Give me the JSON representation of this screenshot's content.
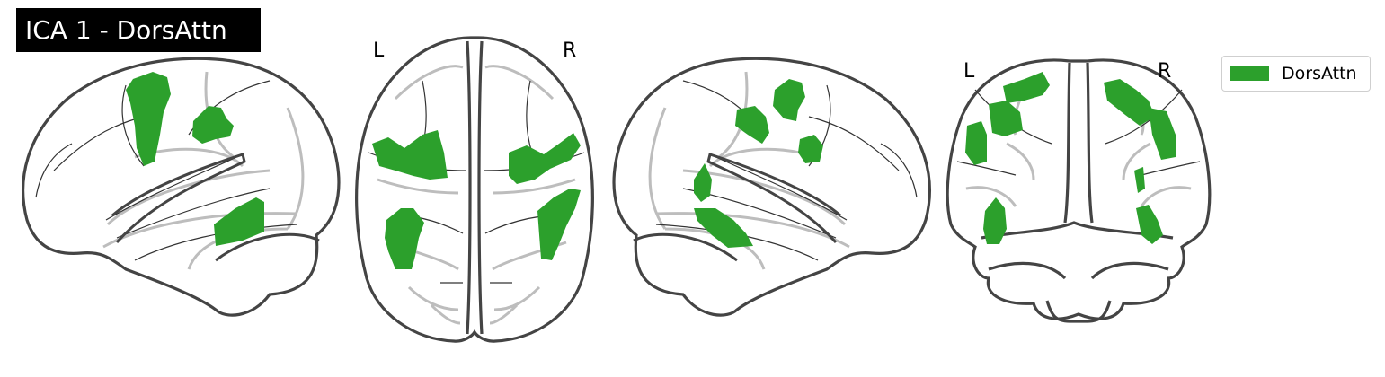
{
  "title": "ICA 1 - DorsAttn",
  "network": "DorsAttn",
  "colors": {
    "network_fill": "#2ca02c",
    "outline": "#444444",
    "gyri": "#bdbdbd",
    "sulci": "#333333",
    "title_background": "#000000",
    "title_text": "#ffffff"
  },
  "views": [
    {
      "name": "left-sagittal"
    },
    {
      "name": "axial",
      "left_label": "L",
      "right_label": "R"
    },
    {
      "name": "right-sagittal"
    },
    {
      "name": "coronal",
      "left_label": "L",
      "right_label": "R"
    }
  ],
  "legend": {
    "entries": [
      {
        "label": "DorsAttn",
        "color": "#2ca02c"
      }
    ]
  }
}
